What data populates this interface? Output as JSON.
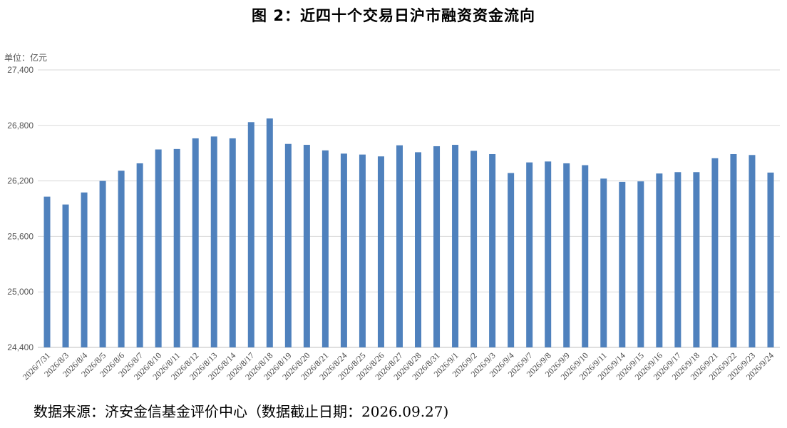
{
  "title": "图 2：近四十个交易日沪市融资资金流向",
  "unit_label": "单位：亿元",
  "source_note": "数据来源：济安金信基金评价中心（数据截止日期：2026.09.27)",
  "colors": {
    "bar": "#4f81bd",
    "grid": "#d9d9d9",
    "axis": "#bfbfbf"
  },
  "chart_data": {
    "type": "bar",
    "title": "图 2：近四十个交易日沪市融资资金流向",
    "ylabel": "单位：亿元",
    "xlabel": "",
    "ylim": [
      24400,
      27400
    ],
    "yticks": [
      24400,
      25000,
      25600,
      26200,
      26800,
      27400
    ],
    "ytick_labels": [
      "24,400",
      "25,000",
      "25,600",
      "26,200",
      "26,800",
      "27,400"
    ],
    "grid": true,
    "categories": [
      "2026/7/31",
      "2026/8/3",
      "2026/8/4",
      "2026/8/5",
      "2026/8/6",
      "2026/8/7",
      "2026/8/10",
      "2026/8/11",
      "2026/8/12",
      "2026/8/13",
      "2026/8/14",
      "2026/8/17",
      "2026/8/18",
      "2026/8/19",
      "2026/8/20",
      "2026/8/21",
      "2026/8/24",
      "2026/8/25",
      "2026/8/26",
      "2026/8/27",
      "2026/8/28",
      "2026/8/31",
      "2026/9/1",
      "2026/9/2",
      "2026/9/3",
      "2026/9/4",
      "2026/9/7",
      "2026/9/8",
      "2026/9/9",
      "2026/9/10",
      "2026/9/11",
      "2026/9/14",
      "2026/9/15",
      "2026/9/16",
      "2026/9/17",
      "2026/9/18",
      "2026/9/21",
      "2026/9/22",
      "2026/9/23",
      "2026/9/24"
    ],
    "values": [
      26030,
      25945,
      26075,
      26200,
      26310,
      26390,
      26540,
      26545,
      26660,
      26680,
      26660,
      26835,
      26875,
      26600,
      26590,
      26530,
      26495,
      26485,
      26465,
      26585,
      26510,
      26575,
      26590,
      26525,
      26490,
      26285,
      26400,
      26410,
      26390,
      26370,
      26225,
      26190,
      26195,
      26280,
      26295,
      26295,
      26445,
      26490,
      26480,
      26290
    ]
  }
}
